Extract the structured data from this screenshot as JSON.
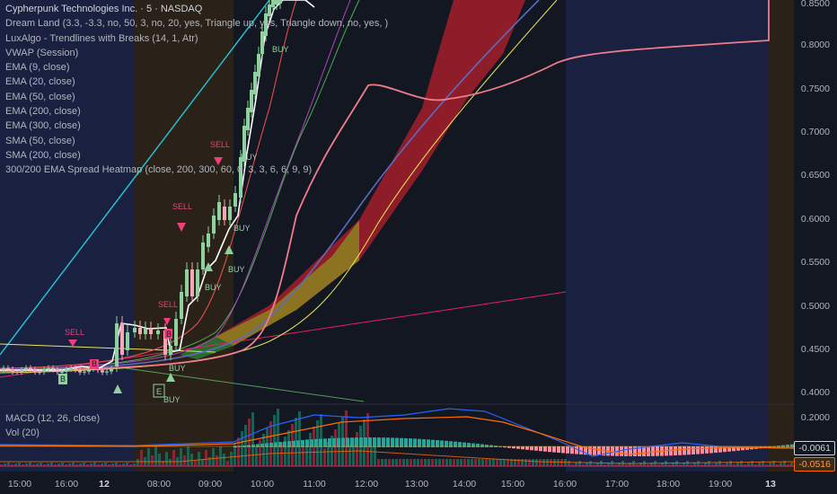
{
  "legend": {
    "title": "Cypherpunk Technologies Inc. · 5 · NASDAQ",
    "indicators": [
      "Dream Land (3.3, -3.3, no, 50, 3, no, 20, yes, Triangle up, yes, Triangle down, no, yes, )",
      "LuxAlgo - Trendlines with Breaks (14, 1, Atr)",
      "VWAP (Session)",
      "EMA (9, close)",
      "EMA (20, close)",
      "EMA (50, close)",
      "EMA (200, close)",
      "EMA (300, close)",
      "SMA (50, close)",
      "SMA (200, close)",
      "300/200 EMA Spread Heatmap (close, 200, 300, 60, 0, 3, 3, 6, 6, 9, 9)"
    ]
  },
  "price_axis": [
    "0.8500",
    "0.8000",
    "0.7500",
    "0.7000",
    "0.6500",
    "0.6000",
    "0.5500",
    "0.5000",
    "0.4500",
    "0.4000"
  ],
  "macd_axis": [
    "0.2000",
    "-0.0061",
    "-0.0516"
  ],
  "macd_legend": [
    "MACD (12, 26, close)",
    "Vol (20)"
  ],
  "time_axis": [
    {
      "label": "15:00",
      "bold": false
    },
    {
      "label": "16:00",
      "bold": false
    },
    {
      "label": "12",
      "bold": true
    },
    {
      "label": "08:00",
      "bold": false
    },
    {
      "label": "09:00",
      "bold": false
    },
    {
      "label": "10:00",
      "bold": false
    },
    {
      "label": "11:00",
      "bold": false
    },
    {
      "label": "12:00",
      "bold": false
    },
    {
      "label": "13:00",
      "bold": false
    },
    {
      "label": "14:00",
      "bold": false
    },
    {
      "label": "15:00",
      "bold": false
    },
    {
      "label": "16:00",
      "bold": false
    },
    {
      "label": "17:00",
      "bold": false
    },
    {
      "label": "18:00",
      "bold": false
    },
    {
      "label": "19:00",
      "bold": false
    },
    {
      "label": "13",
      "bold": true
    }
  ],
  "signals": [
    "SELL",
    "SELL",
    "SELL",
    "SELL",
    "BUY",
    "BUY",
    "BUY",
    "BUY",
    "BUY",
    "BUY",
    "BUY",
    "B",
    "B",
    "B",
    "E"
  ],
  "colors": {
    "background": "#131722",
    "session_blue": "#16213e",
    "session_orange": "#2a2219",
    "buy": "#8fd19e",
    "sell": "#f23d7a",
    "vwap": "#f07c8c",
    "macd_value": "#ffffff",
    "signal_value": "#ff6d00"
  }
}
